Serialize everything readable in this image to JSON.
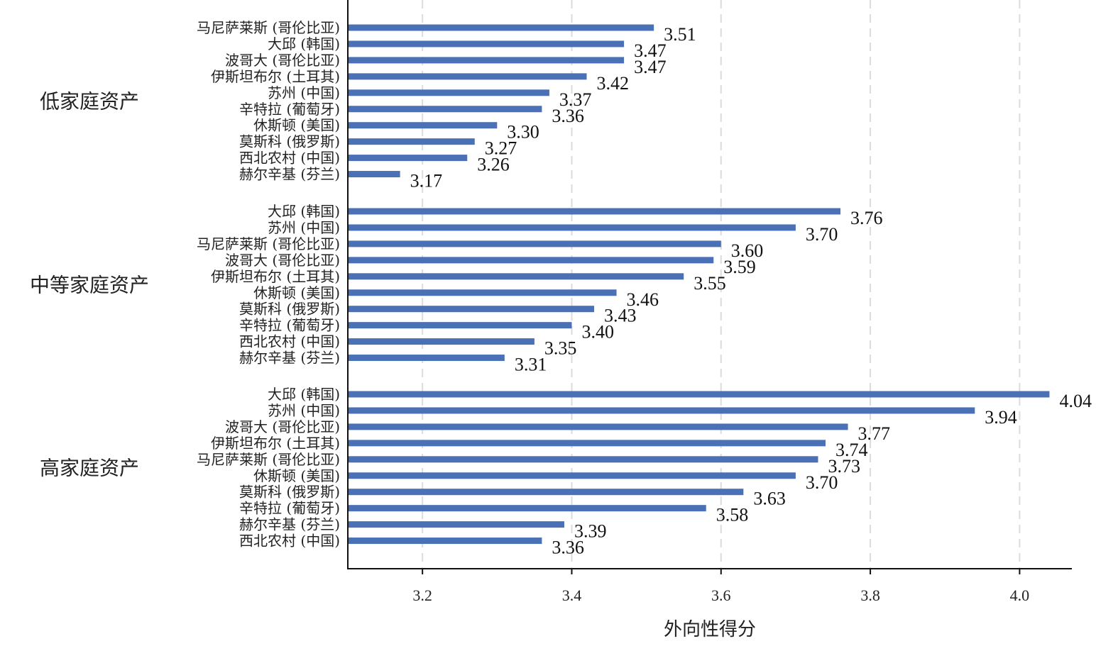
{
  "chart_data": {
    "type": "bar",
    "orientation": "horizontal",
    "xlabel": "外向性得分",
    "xlim": [
      3.1,
      4.07
    ],
    "xticks": [
      3.2,
      3.4,
      3.6,
      3.8,
      4.0
    ],
    "xtick_labels": [
      "3.2",
      "3.4",
      "3.6",
      "3.8",
      "4.0"
    ],
    "grid": "vertical dashed",
    "bar_color": "#4a70b5",
    "groups": [
      {
        "name": "低家庭资产",
        "bars": [
          {
            "label": "马尼萨莱斯 (哥伦比亚)",
            "value": 3.51,
            "value_label": "3.51"
          },
          {
            "label": "大邱 (韩国)",
            "value": 3.47,
            "value_label": "3.47"
          },
          {
            "label": "波哥大 (哥伦比亚)",
            "value": 3.47,
            "value_label": "3.47"
          },
          {
            "label": "伊斯坦布尔 (土耳其)",
            "value": 3.42,
            "value_label": "3.42"
          },
          {
            "label": "苏州 (中国)",
            "value": 3.37,
            "value_label": "3.37"
          },
          {
            "label": "辛特拉 (葡萄牙)",
            "value": 3.36,
            "value_label": "3.36"
          },
          {
            "label": "休斯顿 (美国)",
            "value": 3.3,
            "value_label": "3.30"
          },
          {
            "label": "莫斯科 (俄罗斯)",
            "value": 3.27,
            "value_label": "3.27"
          },
          {
            "label": "西北农村 (中国)",
            "value": 3.26,
            "value_label": "3.26"
          },
          {
            "label": "赫尔辛基 (芬兰)",
            "value": 3.17,
            "value_label": "3.17"
          }
        ]
      },
      {
        "name": "中等家庭资产",
        "bars": [
          {
            "label": "大邱 (韩国)",
            "value": 3.76,
            "value_label": "3.76"
          },
          {
            "label": "苏州 (中国)",
            "value": 3.7,
            "value_label": "3.70"
          },
          {
            "label": "马尼萨莱斯 (哥伦比亚)",
            "value": 3.6,
            "value_label": "3.60"
          },
          {
            "label": "波哥大 (哥伦比亚)",
            "value": 3.59,
            "value_label": "3.59"
          },
          {
            "label": "伊斯坦布尔 (土耳其)",
            "value": 3.55,
            "value_label": "3.55"
          },
          {
            "label": "休斯顿 (美国)",
            "value": 3.46,
            "value_label": "3.46"
          },
          {
            "label": "莫斯科 (俄罗斯)",
            "value": 3.43,
            "value_label": "3.43"
          },
          {
            "label": "辛特拉 (葡萄牙)",
            "value": 3.4,
            "value_label": "3.40"
          },
          {
            "label": "西北农村 (中国)",
            "value": 3.35,
            "value_label": "3.35"
          },
          {
            "label": "赫尔辛基 (芬兰)",
            "value": 3.31,
            "value_label": "3.31"
          }
        ]
      },
      {
        "name": "高家庭资产",
        "bars": [
          {
            "label": "大邱 (韩国)",
            "value": 4.04,
            "value_label": "4.04"
          },
          {
            "label": "苏州 (中国)",
            "value": 3.94,
            "value_label": "3.94"
          },
          {
            "label": "波哥大 (哥伦比亚)",
            "value": 3.77,
            "value_label": "3.77"
          },
          {
            "label": "伊斯坦布尔 (土耳其)",
            "value": 3.74,
            "value_label": "3.74"
          },
          {
            "label": "马尼萨莱斯 (哥伦比亚)",
            "value": 3.73,
            "value_label": "3.73"
          },
          {
            "label": "休斯顿 (美国)",
            "value": 3.7,
            "value_label": "3.70"
          },
          {
            "label": "莫斯科 (俄罗斯)",
            "value": 3.63,
            "value_label": "3.63"
          },
          {
            "label": "辛特拉 (葡萄牙)",
            "value": 3.58,
            "value_label": "3.58"
          },
          {
            "label": "赫尔辛基 (芬兰)",
            "value": 3.39,
            "value_label": "3.39"
          },
          {
            "label": "西北农村 (中国)",
            "value": 3.36,
            "value_label": "3.36"
          }
        ]
      }
    ]
  }
}
